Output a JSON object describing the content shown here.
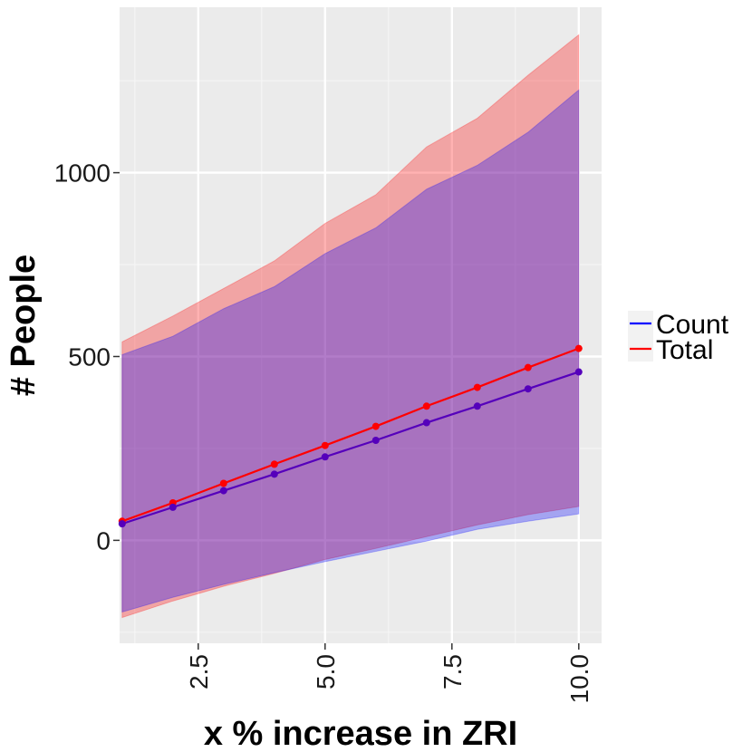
{
  "chart_data": {
    "type": "line",
    "xlabel": "x % increase in ZRI",
    "ylabel": "# People",
    "xlim": [
      0.95,
      10.45
    ],
    "ylim": [
      -280,
      1450
    ],
    "x_ticks": [
      2.5,
      5.0,
      7.5,
      10.0
    ],
    "x_tick_labels": [
      "2.5",
      "5.0",
      "7.5",
      "10.0"
    ],
    "y_ticks": [
      0,
      500,
      1000
    ],
    "y_tick_labels": [
      "0",
      "500",
      "1000"
    ],
    "grid": true,
    "legend_position": "right",
    "x": [
      1,
      2,
      3,
      4,
      5,
      6,
      7,
      8,
      9,
      10
    ],
    "series": [
      {
        "name": "Count",
        "color": "#0000ff",
        "values": [
          45,
          90,
          135,
          180,
          227,
          272,
          320,
          365,
          412,
          458
        ],
        "lower": [
          -195,
          -155,
          -120,
          -88,
          -58,
          -30,
          -2,
          30,
          52,
          72
        ],
        "upper": [
          505,
          555,
          630,
          690,
          780,
          850,
          955,
          1020,
          1110,
          1225
        ]
      },
      {
        "name": "Total",
        "color": "#ff0000",
        "values": [
          52,
          102,
          155,
          207,
          258,
          310,
          365,
          416,
          470,
          522
        ],
        "lower": [
          -210,
          -165,
          -125,
          -90,
          -52,
          -22,
          10,
          42,
          70,
          92
        ],
        "upper": [
          540,
          610,
          685,
          760,
          862,
          940,
          1070,
          1148,
          1265,
          1375
        ]
      }
    ]
  }
}
